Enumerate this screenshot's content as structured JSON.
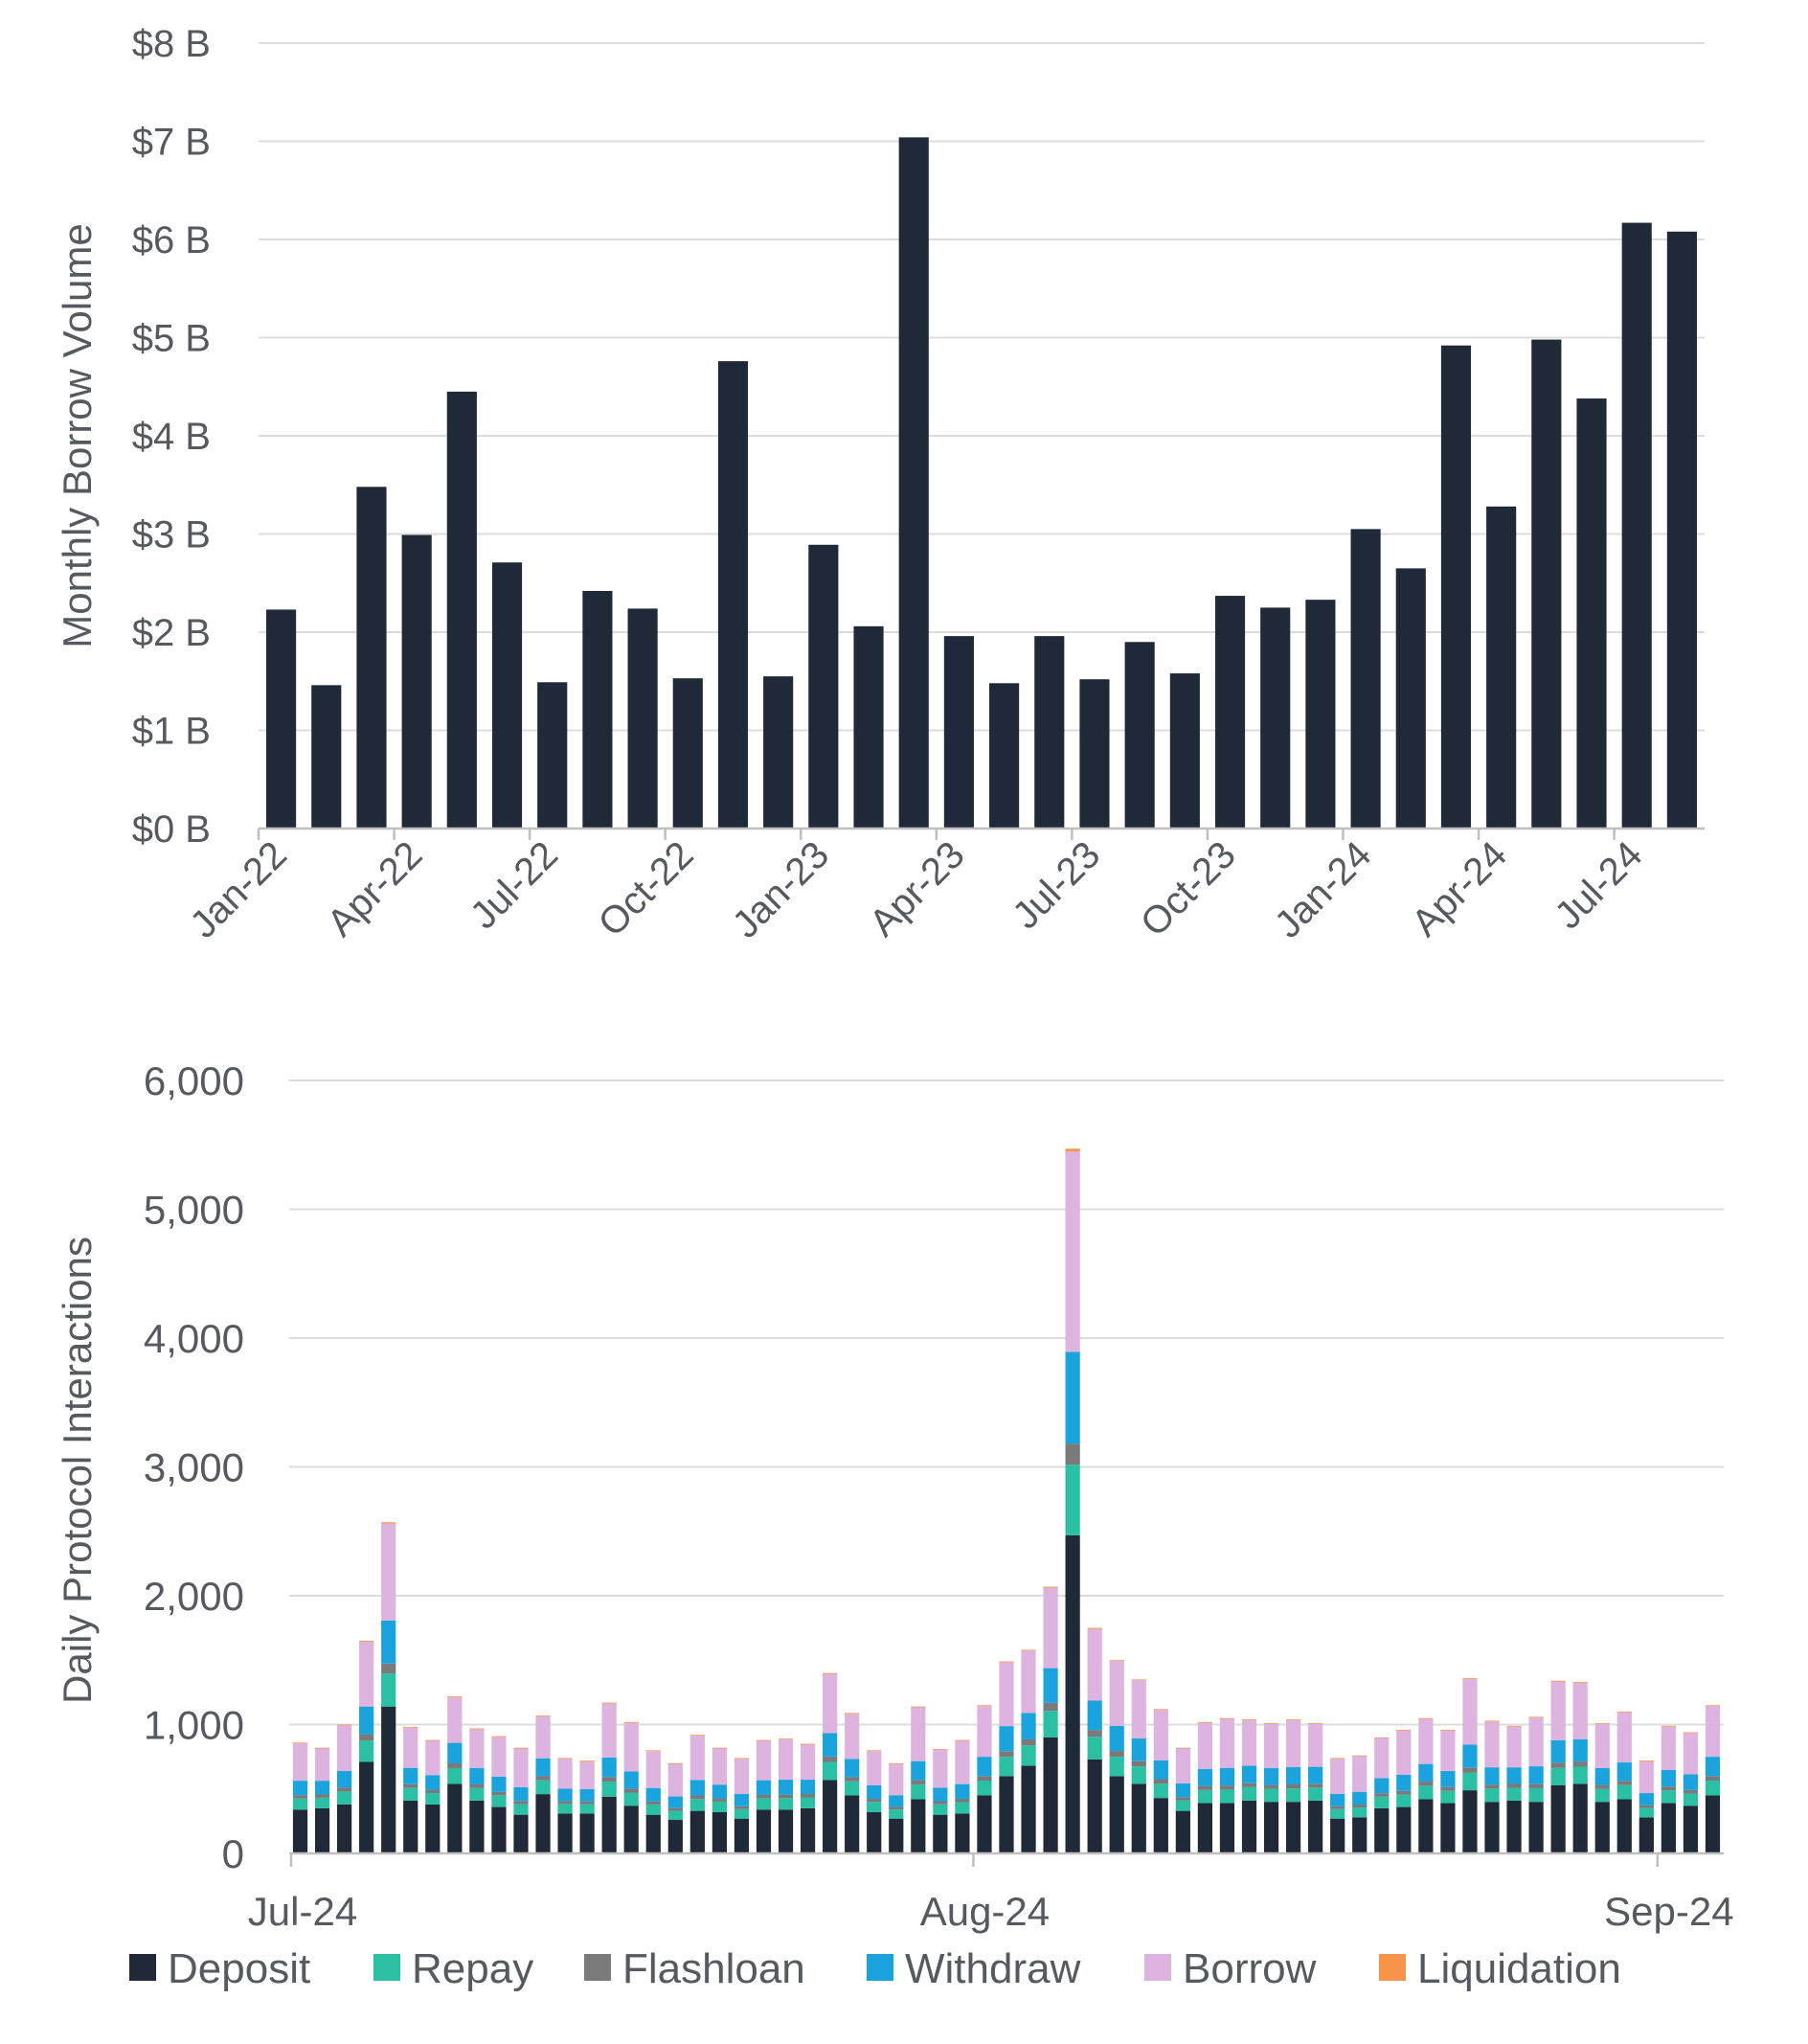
{
  "chart_data": [
    {
      "type": "bar",
      "ylabel": "Monthly Borrow Volume",
      "ylim": [
        0,
        8
      ],
      "y_ticks": [
        "$0 B",
        "$1 B",
        "$2 B",
        "$3 B",
        "$4 B",
        "$5 B",
        "$6 B",
        "$7 B",
        "$8 B"
      ],
      "x_ticks": [
        "Jan-22",
        "Apr-22",
        "Jul-22",
        "Oct-22",
        "Jan-23",
        "Apr-23",
        "Jul-23",
        "Oct-23",
        "Jan-24",
        "Apr-24",
        "Jul-24"
      ],
      "bar_color": "#1f2937",
      "values": [
        2.23,
        1.46,
        3.48,
        2.99,
        4.45,
        2.71,
        1.49,
        2.42,
        2.24,
        1.53,
        4.76,
        1.55,
        2.89,
        2.06,
        7.04,
        1.96,
        1.48,
        1.96,
        1.52,
        1.9,
        1.58,
        2.37,
        2.25,
        2.33,
        3.05,
        2.65,
        4.92,
        3.28,
        4.98,
        4.38,
        6.17,
        6.08
      ]
    },
    {
      "type": "bar",
      "stacked": true,
      "ylabel": "Daily Protocol Interactions",
      "ylim": [
        0,
        6000
      ],
      "y_ticks": [
        "0",
        "1,000",
        "2,000",
        "3,000",
        "4,000",
        "5,000",
        "6,000"
      ],
      "x_ticks": [
        "Jul-24",
        "Aug-24",
        "Sep-24"
      ],
      "series_order": [
        "Deposit",
        "Repay",
        "Flashloan",
        "Withdraw",
        "Borrow",
        "Liquidation"
      ],
      "colors": {
        "Deposit": "#1f2937",
        "Repay": "#2bbfa4",
        "Flashloan": "#7a7a7a",
        "Withdraw": "#1aa3dc",
        "Borrow": "#ddb3e0",
        "Liquidation": "#f5944a"
      },
      "totals": [
        860,
        820,
        1000,
        1650,
        2570,
        980,
        880,
        1220,
        970,
        910,
        820,
        1070,
        740,
        720,
        1170,
        1020,
        800,
        700,
        920,
        820,
        740,
        880,
        890,
        850,
        1400,
        1090,
        800,
        700,
        1140,
        810,
        880,
        1150,
        1490,
        1580,
        2070,
        5470,
        1750,
        1500,
        1350,
        1120,
        820,
        1020,
        1050,
        1040,
        1010,
        1040,
        1010,
        740,
        760,
        900,
        960,
        1050,
        960,
        1360,
        1030,
        990,
        1060,
        1340,
        1330,
        1010,
        1100,
        720,
        990,
        940,
        1150
      ],
      "deposits": [
        340,
        350,
        380,
        710,
        1140,
        410,
        380,
        540,
        410,
        360,
        300,
        460,
        310,
        310,
        440,
        370,
        300,
        260,
        330,
        320,
        270,
        340,
        340,
        350,
        570,
        450,
        320,
        270,
        420,
        300,
        310,
        450,
        600,
        680,
        900,
        2470,
        730,
        600,
        540,
        430,
        330,
        390,
        390,
        410,
        400,
        400,
        410,
        270,
        280,
        350,
        360,
        420,
        390,
        490,
        400,
        410,
        400,
        530,
        540,
        400,
        420,
        280,
        390,
        370,
        450
      ],
      "shares": {
        "Repay": 0.1,
        "Flashloan": 0.03,
        "Withdraw": 0.13,
        "Borrow": 0.3
      },
      "legend": [
        "Deposit",
        "Repay",
        "Flashloan",
        "Withdraw",
        "Borrow",
        "Liquidation"
      ]
    }
  ]
}
